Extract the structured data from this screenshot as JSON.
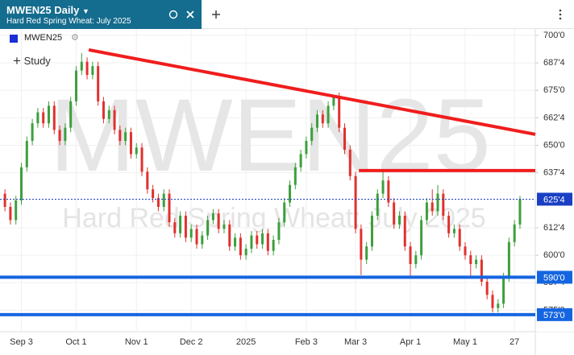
{
  "header": {
    "title": "MWEN25 Daily",
    "subtitle": "Hard Red Spring Wheat: July 2025"
  },
  "legend_symbol": "MWEN25",
  "study_button": "Study",
  "chart_data": {
    "type": "candlestick",
    "watermark": "MWEN25",
    "up_color": "#3d9f3d",
    "down_color": "#e0312e",
    "categories": [
      null,
      null,
      null,
      "Sep 3",
      null,
      null,
      null,
      null,
      null,
      null,
      null,
      null,
      null,
      "Oct 1",
      null,
      null,
      null,
      null,
      null,
      null,
      null,
      null,
      null,
      null,
      "Nov 1",
      null,
      null,
      null,
      null,
      null,
      null,
      null,
      null,
      null,
      "Dec 2",
      null,
      null,
      null,
      null,
      null,
      null,
      null,
      null,
      null,
      "2025",
      null,
      null,
      null,
      null,
      null,
      null,
      null,
      null,
      null,
      null,
      "Feb 3",
      null,
      null,
      null,
      null,
      null,
      null,
      null,
      null,
      "Mar 3",
      null,
      null,
      null,
      null,
      null,
      null,
      null,
      null,
      null,
      "Apr 1",
      null,
      null,
      null,
      null,
      null,
      null,
      null,
      null,
      null,
      "May 1",
      null,
      null,
      null,
      null,
      null,
      null,
      null,
      null,
      "27",
      null
    ],
    "ohlc": [
      [
        628,
        630,
        620,
        622
      ],
      [
        622,
        624,
        614,
        616
      ],
      [
        616,
        627,
        614,
        625
      ],
      [
        625,
        642,
        623,
        640
      ],
      [
        640,
        654,
        638,
        652
      ],
      [
        652,
        662,
        650,
        660
      ],
      [
        660,
        667,
        658,
        665
      ],
      [
        665,
        667,
        658,
        660
      ],
      [
        660,
        670,
        658,
        668
      ],
      [
        668,
        670,
        655,
        657
      ],
      [
        657,
        659,
        650,
        652
      ],
      [
        652,
        660,
        650,
        658
      ],
      [
        658,
        672,
        656,
        670
      ],
      [
        670,
        686,
        668,
        684
      ],
      [
        684,
        692,
        682,
        688
      ],
      [
        688,
        690,
        680,
        682
      ],
      [
        682,
        688,
        680,
        686
      ],
      [
        686,
        688,
        668,
        670
      ],
      [
        670,
        672,
        660,
        662
      ],
      [
        662,
        668,
        660,
        666
      ],
      [
        666,
        668,
        655,
        657
      ],
      [
        657,
        659,
        650,
        652
      ],
      [
        652,
        658,
        650,
        656
      ],
      [
        656,
        658,
        644,
        646
      ],
      [
        646,
        651,
        644,
        649
      ],
      [
        649,
        651,
        636,
        638
      ],
      [
        638,
        640,
        628,
        630
      ],
      [
        630,
        632,
        624,
        626
      ],
      [
        626,
        628,
        620,
        622
      ],
      [
        622,
        630,
        620,
        628
      ],
      [
        628,
        630,
        613,
        615
      ],
      [
        615,
        617,
        608,
        610
      ],
      [
        610,
        620,
        608,
        618
      ],
      [
        618,
        620,
        606,
        608
      ],
      [
        608,
        614,
        606,
        612
      ],
      [
        612,
        614,
        603,
        605
      ],
      [
        605,
        611,
        603,
        609
      ],
      [
        609,
        618,
        607,
        616
      ],
      [
        616,
        621,
        614,
        619
      ],
      [
        619,
        621,
        610,
        612
      ],
      [
        612,
        616,
        610,
        614
      ],
      [
        614,
        616,
        602,
        604
      ],
      [
        604,
        610,
        602,
        608
      ],
      [
        608,
        610,
        598,
        600
      ],
      [
        600,
        605,
        598,
        603
      ],
      [
        603,
        611,
        601,
        609
      ],
      [
        609,
        611,
        603,
        605
      ],
      [
        605,
        612,
        603,
        610
      ],
      [
        610,
        612,
        600,
        602
      ],
      [
        602,
        609,
        600,
        607
      ],
      [
        607,
        617,
        605,
        615
      ],
      [
        615,
        626,
        613,
        624
      ],
      [
        624,
        634,
        622,
        632
      ],
      [
        632,
        642,
        630,
        640
      ],
      [
        640,
        648,
        638,
        646
      ],
      [
        646,
        654,
        644,
        652
      ],
      [
        652,
        660,
        650,
        658
      ],
      [
        658,
        666,
        656,
        664
      ],
      [
        664,
        666,
        658,
        660
      ],
      [
        660,
        670,
        658,
        668
      ],
      [
        668,
        673,
        666,
        672
      ],
      [
        672,
        674,
        656,
        658
      ],
      [
        658,
        660,
        646,
        648
      ],
      [
        648,
        650,
        634,
        636
      ],
      [
        636,
        638,
        610,
        612
      ],
      [
        612,
        614,
        591,
        598
      ],
      [
        598,
        606,
        596,
        604
      ],
      [
        604,
        620,
        602,
        618
      ],
      [
        618,
        630,
        616,
        628
      ],
      [
        628,
        638,
        626,
        634
      ],
      [
        634,
        636,
        622,
        624
      ],
      [
        624,
        626,
        612,
        614
      ],
      [
        614,
        620,
        612,
        618
      ],
      [
        618,
        620,
        602,
        604
      ],
      [
        604,
        606,
        590,
        596
      ],
      [
        596,
        602,
        594,
        600
      ],
      [
        600,
        618,
        598,
        616
      ],
      [
        616,
        626,
        614,
        624
      ],
      [
        624,
        630,
        618,
        620
      ],
      [
        620,
        632,
        618,
        628
      ],
      [
        628,
        630,
        616,
        618
      ],
      [
        618,
        620,
        608,
        610
      ],
      [
        610,
        614,
        608,
        612
      ],
      [
        612,
        614,
        602,
        604
      ],
      [
        604,
        606,
        598,
        600
      ],
      [
        600,
        602,
        590,
        596
      ],
      [
        596,
        600,
        594,
        598
      ],
      [
        598,
        600,
        586,
        588
      ],
      [
        588,
        590,
        580,
        582
      ],
      [
        582,
        584,
        574,
        576
      ],
      [
        576,
        580,
        574,
        578
      ],
      [
        578,
        592,
        576,
        590
      ],
      [
        590,
        608,
        588,
        606
      ],
      [
        606,
        616,
        604,
        614
      ],
      [
        614,
        627,
        612,
        625.5
      ]
    ],
    "xlim": [
      -0.9,
      96.8
    ],
    "ylim": [
      566,
      702.9
    ],
    "yticks": [
      {
        "value": 700,
        "label": "700'0"
      },
      {
        "value": 687.5,
        "label": "687'4"
      },
      {
        "value": 675,
        "label": "675'0"
      },
      {
        "value": 662.5,
        "label": "662'4"
      },
      {
        "value": 650,
        "label": "650'0"
      },
      {
        "value": 637.5,
        "label": "637'4"
      },
      {
        "value": 612.5,
        "label": "612'4"
      },
      {
        "value": 600,
        "label": "600'0"
      },
      {
        "value": 587.5,
        "label": "587'4"
      },
      {
        "value": 575,
        "label": "575'0"
      }
    ],
    "grid": true,
    "last_price": {
      "value": 625.5,
      "label": "625'4",
      "color": "#1a3fc4"
    },
    "horizontal_lines": [
      {
        "value": 590,
        "label": "590'0",
        "color": "#1565e0"
      },
      {
        "value": 573,
        "label": "573'0",
        "color": "#1565e0"
      }
    ],
    "trendlines": [
      {
        "x": [
          15.3,
          96.8
        ],
        "y": [
          693.4,
          655
        ],
        "color": "#f01d1d"
      },
      {
        "x": [
          64.6,
          96.8
        ],
        "y": [
          638.5,
          638.5
        ],
        "color": "#f01d1d"
      }
    ]
  }
}
